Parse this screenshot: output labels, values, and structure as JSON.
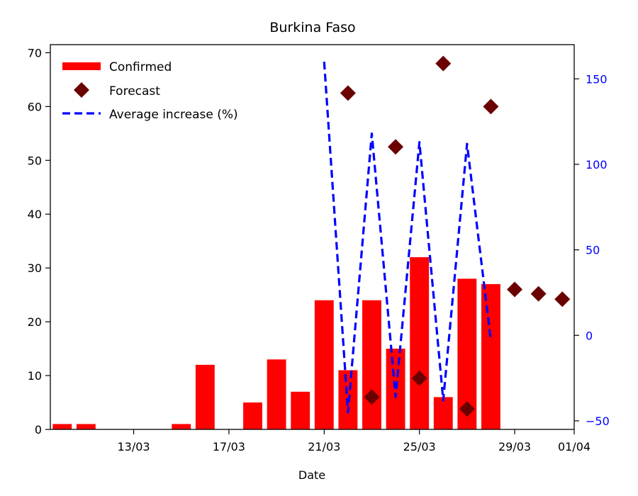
{
  "chart_data": {
    "type": "bar",
    "title": "Burkina Faso",
    "xlabel": "Date",
    "ylabel": "",
    "y2label": "",
    "x_range": [
      -0.5,
      21.5
    ],
    "ylim": [
      0,
      71.5
    ],
    "y2lim": [
      -55,
      170
    ],
    "x_ticks": [
      {
        "x": 3,
        "label": "13/03"
      },
      {
        "x": 7,
        "label": "17/03"
      },
      {
        "x": 11,
        "label": "21/03"
      },
      {
        "x": 15,
        "label": "25/03"
      },
      {
        "x": 19,
        "label": "29/03"
      },
      {
        "x": 21.5,
        "label": "01/04"
      }
    ],
    "y_ticks": [
      0,
      10,
      20,
      30,
      40,
      50,
      60,
      70
    ],
    "y2_ticks": [
      -50,
      0,
      50,
      100,
      150
    ],
    "legend_position": "top-left",
    "colors": {
      "confirmed": "#ff0000",
      "forecast": "#6b0000",
      "average_increase": "#0000ff",
      "right_axis": "#0000ff",
      "axis": "#000000"
    },
    "series": [
      {
        "name": "Confirmed",
        "kind": "bar",
        "axis": "left",
        "points": [
          {
            "x": 0,
            "y": 1
          },
          {
            "x": 1,
            "y": 1
          },
          {
            "x": 2,
            "y": 0
          },
          {
            "x": 3,
            "y": 0
          },
          {
            "x": 4,
            "y": 0
          },
          {
            "x": 5,
            "y": 1
          },
          {
            "x": 6,
            "y": 12
          },
          {
            "x": 7,
            "y": 0
          },
          {
            "x": 8,
            "y": 5
          },
          {
            "x": 9,
            "y": 13
          },
          {
            "x": 10,
            "y": 7
          },
          {
            "x": 11,
            "y": 24
          },
          {
            "x": 12,
            "y": 11
          },
          {
            "x": 13,
            "y": 24
          },
          {
            "x": 14,
            "y": 15
          },
          {
            "x": 15,
            "y": 32
          },
          {
            "x": 16,
            "y": 6
          },
          {
            "x": 17,
            "y": 28
          },
          {
            "x": 18,
            "y": 27
          }
        ]
      },
      {
        "name": "Forecast",
        "kind": "scatter",
        "axis": "left",
        "points": [
          {
            "x": 12,
            "y": 62.5
          },
          {
            "x": 13,
            "y": 6
          },
          {
            "x": 14,
            "y": 52.5
          },
          {
            "x": 15,
            "y": 9.5
          },
          {
            "x": 16,
            "y": 68
          },
          {
            "x": 17,
            "y": 3.8
          },
          {
            "x": 18,
            "y": 60
          },
          {
            "x": 19,
            "y": 26
          },
          {
            "x": 20,
            "y": 25.2
          },
          {
            "x": 21,
            "y": 24.2
          }
        ]
      },
      {
        "name": "Average increase (%)",
        "kind": "line",
        "axis": "right",
        "points": [
          {
            "x": 11,
            "y": 160
          },
          {
            "x": 12,
            "y": -45
          },
          {
            "x": 13,
            "y": 118
          },
          {
            "x": 14,
            "y": -36
          },
          {
            "x": 15,
            "y": 113
          },
          {
            "x": 16,
            "y": -38
          },
          {
            "x": 17,
            "y": 112
          },
          {
            "x": 18,
            "y": -3
          }
        ]
      }
    ]
  }
}
